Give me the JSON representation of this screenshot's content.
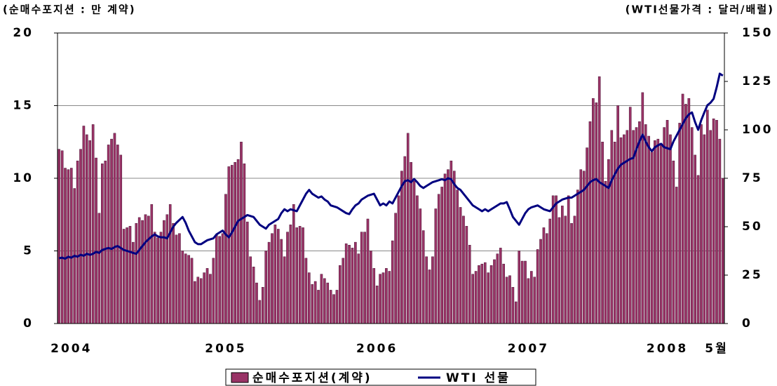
{
  "chart_data": {
    "type": "bar_line",
    "left_axis_title": "(순매수포지션 : 만 계약)",
    "right_axis_title": "(WTI선물가격 : 달러/배럴)",
    "categories": [
      null,
      null,
      null,
      null,
      "2004",
      null,
      null,
      null,
      null,
      null,
      null,
      null,
      null,
      null,
      null,
      null,
      null,
      null,
      null,
      null,
      null,
      null,
      null,
      null,
      null,
      null,
      null,
      null,
      null,
      null,
      null,
      null,
      null,
      null,
      null,
      null,
      null,
      null,
      null,
      null,
      null,
      null,
      null,
      null,
      null,
      null,
      null,
      null,
      null,
      null,
      null,
      null,
      null,
      null,
      "2005",
      null,
      null,
      null,
      null,
      null,
      null,
      null,
      null,
      null,
      null,
      null,
      null,
      null,
      null,
      null,
      null,
      null,
      null,
      null,
      null,
      null,
      null,
      null,
      null,
      null,
      null,
      null,
      null,
      null,
      null,
      null,
      null,
      null,
      null,
      null,
      null,
      null,
      null,
      null,
      null,
      null,
      null,
      null,
      null,
      null,
      null,
      null,
      null,
      "2006",
      null,
      null,
      null,
      null,
      null,
      null,
      null,
      null,
      null,
      null,
      null,
      null,
      null,
      null,
      null,
      null,
      null,
      null,
      null,
      null,
      null,
      null,
      null,
      null,
      null,
      null,
      null,
      null,
      null,
      null,
      null,
      null,
      null,
      null,
      null,
      null,
      null,
      null,
      null,
      null,
      null,
      null,
      null,
      null,
      null,
      null,
      null,
      null,
      "2007",
      null,
      null,
      null,
      null,
      null,
      null,
      null,
      null,
      null,
      null,
      null,
      null,
      null,
      null,
      null,
      null,
      null,
      null,
      null,
      null,
      null,
      null,
      null,
      null,
      null,
      null,
      null,
      null,
      null,
      null,
      null,
      null,
      null,
      null,
      null,
      null,
      null,
      null,
      null,
      null,
      null,
      null,
      null,
      null,
      "2008",
      null,
      null,
      null,
      null,
      null,
      null,
      null,
      null,
      null,
      null,
      null,
      null,
      null,
      null,
      null,
      "5월",
      null,
      null
    ],
    "series": [
      {
        "name": "순매수포지션(계약)",
        "type": "bar",
        "color": "#993366",
        "values": [
          12,
          11.9,
          10.7,
          10.6,
          10.7,
          9.3,
          11.2,
          12,
          13.6,
          13,
          12.6,
          13.7,
          11.4,
          7.6,
          11,
          11.2,
          12.3,
          12.7,
          13.1,
          12.3,
          11.6,
          6.5,
          6.6,
          6.7,
          5.6,
          6.9,
          7.3,
          7.1,
          7.5,
          7.4,
          8.2,
          6.3,
          5.9,
          6.3,
          7.1,
          7.5,
          8.2,
          6.9,
          6.1,
          6.2,
          5,
          4.8,
          4.7,
          4.5,
          2.9,
          3.2,
          3.1,
          3.5,
          3.8,
          3.4,
          4.5,
          6.1,
          6,
          6.2,
          8.9,
          10.8,
          10.9,
          11.1,
          11.3,
          12.5,
          11,
          7,
          4.6,
          3.9,
          2.8,
          1.6,
          2.5,
          5,
          5.6,
          6.2,
          6.8,
          6.5,
          5.8,
          4.6,
          6.3,
          6.8,
          8.2,
          6.6,
          6.7,
          6.6,
          4.5,
          3.5,
          2.7,
          2.9,
          2.3,
          3.4,
          3.1,
          2.8,
          2.3,
          2,
          2.3,
          4,
          4.5,
          5.5,
          5.4,
          5.2,
          5.6,
          4.8,
          6.3,
          6.3,
          7.2,
          5,
          3.8,
          2.6,
          3.4,
          3.5,
          3.8,
          3.6,
          5.7,
          7.6,
          8.8,
          10.5,
          11.5,
          13.1,
          11.1,
          9.8,
          8.8,
          7.9,
          6.4,
          4.6,
          3.7,
          4.6,
          7.9,
          8.9,
          9.4,
          10.3,
          10.6,
          11.2,
          10.5,
          9.2,
          8,
          7.4,
          6.7,
          5.4,
          3.4,
          3.6,
          4,
          4.1,
          4.2,
          3.5,
          4,
          4.4,
          4.8,
          5.2,
          4.1,
          3.2,
          3.3,
          2.5,
          1.5,
          5,
          4.3,
          4.3,
          3.1,
          3.6,
          3.2,
          5.1,
          5.8,
          6.6,
          6.2,
          7.2,
          8.8,
          8.8,
          7.3,
          8.1,
          7.4,
          8.8,
          6.9,
          7.4,
          9.2,
          10.6,
          10.5,
          12.1,
          13.9,
          15.5,
          15.2,
          17,
          12.5,
          9.8,
          11.3,
          13.3,
          12.5,
          15,
          12.8,
          13,
          13.3,
          14.9,
          13.3,
          13.5,
          13.9,
          15.9,
          13.7,
          12.9,
          11.8,
          12.6,
          12.7,
          12.3,
          13.5,
          14,
          13,
          11.2,
          9.4,
          13.8,
          15.8,
          15.1,
          15.5,
          13.5,
          11.6,
          10.2,
          13.7,
          13,
          14.7,
          13.3,
          14.1,
          14,
          12.7,
          10
        ]
      },
      {
        "name": "WTI 선물",
        "type": "line",
        "axis": "y2",
        "color": "#000080",
        "values": [
          33.7,
          34,
          33.5,
          34.5,
          34,
          35,
          34.5,
          35.5,
          35,
          36,
          35.5,
          36,
          37,
          36.5,
          38,
          38.5,
          39,
          38.5,
          39.5,
          40,
          39,
          38,
          37.5,
          37,
          36.5,
          36,
          38,
          40,
          42,
          43.5,
          45,
          46,
          45,
          44.5,
          44.5,
          44,
          47,
          50,
          52,
          53.5,
          55,
          52,
          48,
          45,
          42,
          41,
          41,
          42,
          43,
          43.5,
          44,
          46,
          47,
          48,
          46,
          44.5,
          47,
          50,
          53,
          54,
          55,
          56,
          55.5,
          55,
          53,
          51,
          50,
          49,
          51,
          52,
          53,
          54,
          57,
          59,
          58,
          59,
          58.5,
          58,
          61,
          64,
          67,
          69,
          67,
          66,
          65,
          65.6,
          64,
          63,
          61,
          60.5,
          60,
          59,
          58,
          57,
          56.5,
          59,
          61,
          62,
          64,
          65,
          66,
          66.5,
          67,
          64,
          61,
          62,
          61,
          63,
          62,
          65,
          68,
          71,
          73.5,
          74,
          73,
          74.6,
          73,
          71,
          70,
          71,
          72,
          73,
          73.5,
          74,
          74.5,
          74,
          75,
          74.5,
          72,
          70,
          69,
          67,
          65,
          63,
          61,
          60,
          59,
          58,
          59,
          58,
          59,
          60,
          61,
          62,
          62,
          62.7,
          59,
          55,
          53,
          51,
          54,
          57,
          59,
          60,
          60.5,
          61,
          60,
          59,
          58.5,
          58,
          60,
          62,
          63,
          64,
          64.5,
          65,
          65,
          66,
          67,
          68,
          69,
          71,
          73,
          74,
          74.6,
          73,
          72,
          71,
          70,
          74,
          77,
          80,
          82,
          83,
          84,
          85,
          85.5,
          90,
          94,
          97.5,
          94,
          91,
          89,
          91,
          92,
          92.8,
          91,
          90.5,
          90,
          94,
          97,
          100,
          103,
          106,
          108,
          109,
          104,
          100,
          105,
          109,
          112.7,
          114,
          116,
          122,
          129,
          128
        ]
      }
    ],
    "ylim": [
      0,
      20
    ],
    "yticks": [
      0,
      5,
      10,
      15,
      20
    ],
    "y2lim": [
      0,
      150
    ],
    "y2ticks": [
      0,
      25,
      50,
      75,
      100,
      125,
      150
    ],
    "grid": true,
    "legend": "bottom"
  }
}
